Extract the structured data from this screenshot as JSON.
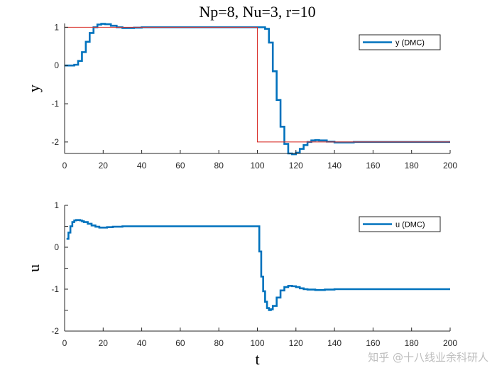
{
  "chart_data": [
    {
      "type": "line",
      "title": "Np=8, Nu=3, r=10",
      "xlabel": "",
      "ylabel": "y",
      "xlim": [
        0,
        200
      ],
      "ylim": [
        -2.3,
        1.1
      ],
      "xticks": [
        0,
        20,
        40,
        60,
        80,
        100,
        120,
        140,
        160,
        180,
        200
      ],
      "xtick_labels": [
        "0",
        "20",
        "40",
        "60",
        "80",
        "100",
        "120",
        "140",
        "160",
        "180",
        "200"
      ],
      "yticks": [
        1,
        0,
        -1,
        -2
      ],
      "ytick_labels": [
        "1",
        "0",
        "-1",
        "-2"
      ],
      "legend": "top-right",
      "series": [
        {
          "name": "y (DMC)",
          "color": "#0072BD",
          "style": "step",
          "show_in_legend": true,
          "x": [
            0,
            3,
            5,
            7,
            9,
            11,
            13,
            15,
            17,
            19,
            21,
            24,
            27,
            30,
            33,
            36,
            40,
            60,
            100,
            104,
            106,
            108,
            110,
            112,
            114,
            116,
            118,
            120,
            122,
            124,
            126,
            128,
            130,
            132,
            136,
            140,
            145,
            150,
            200
          ],
          "y": [
            0,
            0,
            0.02,
            0.12,
            0.35,
            0.62,
            0.85,
            1.0,
            1.07,
            1.09,
            1.08,
            1.04,
            1.0,
            0.98,
            0.98,
            0.99,
            1.0,
            1.0,
            1.0,
            0.96,
            0.6,
            -0.15,
            -0.9,
            -1.6,
            -2.05,
            -2.3,
            -2.32,
            -2.28,
            -2.18,
            -2.08,
            -2.0,
            -1.96,
            -1.95,
            -1.96,
            -1.99,
            -2.01,
            -2.01,
            -2.0,
            -2.0
          ]
        },
        {
          "name": "reference",
          "color": "#D9312B",
          "style": "step",
          "show_in_legend": false,
          "x": [
            0,
            100,
            100,
            200
          ],
          "y": [
            1,
            1,
            -2,
            -2
          ]
        }
      ]
    },
    {
      "type": "line",
      "title": "",
      "xlabel": "t",
      "ylabel": "u",
      "xlim": [
        0,
        200
      ],
      "ylim": [
        -2,
        1
      ],
      "xticks": [
        0,
        20,
        40,
        60,
        80,
        100,
        120,
        140,
        160,
        180,
        200
      ],
      "xtick_labels": [
        "0",
        "20",
        "40",
        "60",
        "80",
        "100",
        "120",
        "140",
        "160",
        "180",
        "200"
      ],
      "yticks": [
        1,
        0.5,
        0,
        -0.5,
        -1,
        -1.5,
        -2
      ],
      "ytick_labels": [
        "1",
        "",
        "0",
        "",
        "-1",
        "",
        "-2"
      ],
      "legend": "top-right",
      "series": [
        {
          "name": "u (DMC)",
          "color": "#0072BD",
          "style": "step",
          "show_in_legend": true,
          "x": [
            1,
            2,
            3,
            4,
            5,
            6,
            7,
            8,
            9,
            10,
            12,
            14,
            16,
            18,
            20,
            22,
            25,
            30,
            40,
            100,
            101,
            102,
            103,
            104,
            105,
            106,
            107,
            108,
            110,
            112,
            114,
            116,
            118,
            120,
            122,
            124,
            126,
            130,
            135,
            140,
            200
          ],
          "y": [
            0.2,
            0.35,
            0.5,
            0.6,
            0.64,
            0.65,
            0.65,
            0.64,
            0.62,
            0.6,
            0.56,
            0.52,
            0.49,
            0.47,
            0.47,
            0.48,
            0.49,
            0.5,
            0.5,
            0.5,
            -0.1,
            -0.7,
            -1.05,
            -1.3,
            -1.45,
            -1.5,
            -1.48,
            -1.4,
            -1.2,
            -1.03,
            -0.95,
            -0.92,
            -0.93,
            -0.95,
            -0.98,
            -1.0,
            -1.01,
            -1.02,
            -1.01,
            -1.0,
            -1.0
          ]
        }
      ]
    }
  ],
  "watermark": "知乎 @十八线业余科研人"
}
